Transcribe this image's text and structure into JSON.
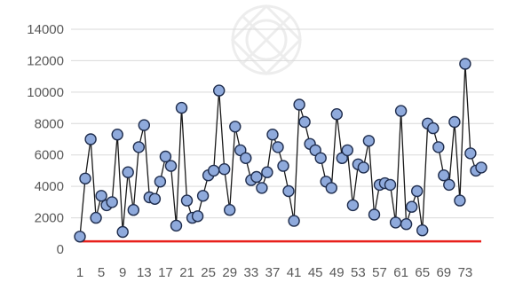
{
  "chart_data": {
    "type": "line",
    "title": "",
    "xlabel": "",
    "ylabel": "",
    "ylim": [
      0,
      14000
    ],
    "xlim": [
      1,
      76
    ],
    "grid": "horizontal",
    "legend": "none",
    "y_ticks": [
      0,
      2000,
      4000,
      6000,
      8000,
      10000,
      12000,
      14000
    ],
    "y_tick_labels": [
      "0",
      "2000",
      "4000",
      "6000",
      "8000",
      "10000",
      "12000",
      "14000"
    ],
    "x_ticks": [
      1,
      5,
      9,
      13,
      17,
      21,
      25,
      29,
      33,
      37,
      41,
      45,
      49,
      53,
      57,
      61,
      65,
      69,
      73
    ],
    "x_tick_labels": [
      "1",
      "5",
      "9",
      "13",
      "17",
      "21",
      "25",
      "29",
      "33",
      "37",
      "41",
      "45",
      "49",
      "53",
      "57",
      "61",
      "65",
      "69",
      "73"
    ],
    "series": [
      {
        "color": "#1a1a1a",
        "marker_fill": "#8faadc",
        "marker_edge": "#1f2d4d",
        "marker": "circle",
        "x": [
          1,
          2,
          3,
          4,
          5,
          6,
          7,
          8,
          9,
          10,
          11,
          12,
          13,
          14,
          15,
          16,
          17,
          18,
          19,
          20,
          21,
          22,
          23,
          24,
          25,
          26,
          27,
          28,
          29,
          30,
          31,
          32,
          33,
          34,
          35,
          36,
          37,
          38,
          39,
          40,
          41,
          42,
          43,
          44,
          45,
          46,
          47,
          48,
          49,
          50,
          51,
          52,
          53,
          54,
          55,
          56,
          57,
          58,
          59,
          60,
          61,
          62,
          63,
          64,
          65,
          66,
          67,
          68,
          69,
          70,
          71,
          72,
          73,
          74,
          75,
          76
        ],
        "values": [
          800,
          4500,
          7000,
          2000,
          3400,
          2800,
          3000,
          7300,
          1100,
          4900,
          2500,
          6500,
          7900,
          3300,
          3200,
          4300,
          5900,
          5300,
          1500,
          9000,
          3100,
          2000,
          2100,
          3400,
          4700,
          5000,
          10100,
          5100,
          2500,
          7800,
          6300,
          5800,
          4400,
          4600,
          3900,
          4900,
          7300,
          6500,
          5300,
          3700,
          1800,
          9200,
          8100,
          6700,
          6300,
          5800,
          4300,
          3900,
          8600,
          5800,
          6300,
          2800,
          5400,
          5200,
          6900,
          2200,
          4100,
          4200,
          4100,
          1700,
          8800,
          1600,
          2700,
          3700,
          1200,
          8000,
          7700,
          6500,
          4700,
          4100,
          8100,
          3100,
          11800,
          6100,
          5000,
          5200
        ]
      },
      {
        "color": "#e8201c",
        "marker": "none",
        "x": [
          1,
          76
        ],
        "values": [
          500,
          500
        ]
      }
    ]
  }
}
